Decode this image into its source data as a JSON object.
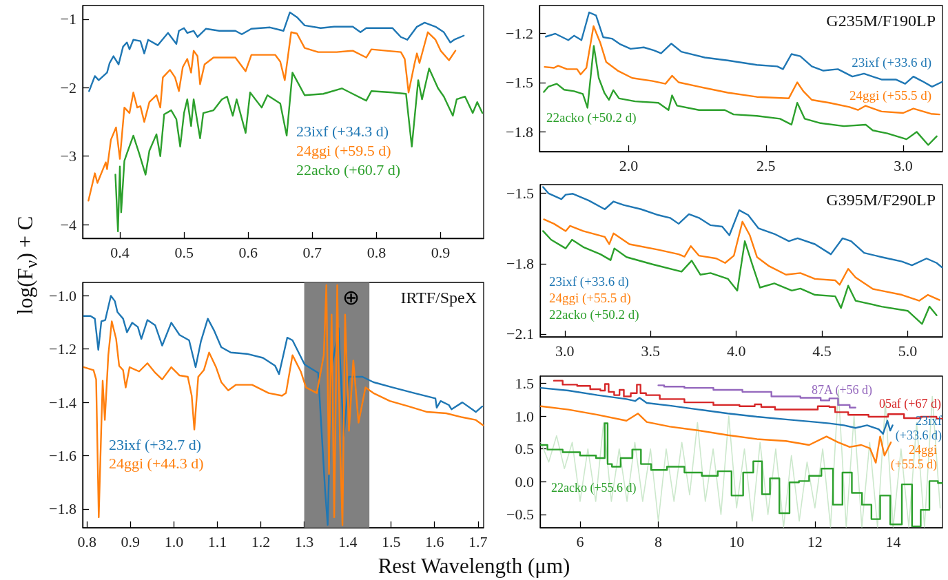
{
  "chart_data": [
    {
      "type": "line",
      "ylabel": "log(F$_{ν}$) + C",
      "xlim": [
        0.342,
        0.967
      ],
      "ylim": [
        -4.2,
        -0.8
      ],
      "xticks": [
        {
          "value": 0.4,
          "label": "0.4"
        },
        {
          "value": 0.5,
          "label": "0.5"
        },
        {
          "value": 0.6,
          "label": "0.6"
        },
        {
          "value": 0.7,
          "label": "0.7"
        },
        {
          "value": 0.8,
          "label": "0.8"
        },
        {
          "value": 0.9,
          "label": "0.9"
        }
      ],
      "yticks": [
        {
          "value": -1,
          "label": "−1"
        },
        {
          "value": -2,
          "label": "−2"
        },
        {
          "value": -3,
          "label": "−3"
        },
        {
          "value": -4,
          "label": "−4"
        }
      ],
      "series": [
        {
          "name": "23ixf (+34.3 d)",
          "color": "#1f77b4",
          "x": [
            0.352,
            0.361,
            0.367,
            0.38,
            0.384,
            0.39,
            0.398,
            0.405,
            0.411,
            0.415,
            0.421,
            0.432,
            0.438,
            0.444,
            0.459,
            0.475,
            0.488,
            0.492,
            0.5,
            0.505,
            0.515,
            0.521,
            0.534,
            0.555,
            0.58,
            0.59,
            0.605,
            0.634,
            0.655,
            0.665,
            0.676,
            0.688,
            0.713,
            0.734,
            0.763,
            0.775,
            0.784,
            0.825,
            0.838,
            0.848,
            0.863,
            0.875,
            0.892,
            0.905,
            0.915,
            0.921,
            0.936
          ],
          "values": [
            -2.05,
            -1.83,
            -1.89,
            -1.78,
            -1.64,
            -1.54,
            -1.66,
            -1.4,
            -1.34,
            -1.44,
            -1.3,
            -1.32,
            -1.5,
            -1.3,
            -1.38,
            -1.2,
            -1.36,
            -1.17,
            -1.13,
            -1.2,
            -1.17,
            -1.26,
            -1.14,
            -1.17,
            -1.17,
            -1.22,
            -1.14,
            -1.12,
            -1.17,
            -0.9,
            -0.97,
            -1.09,
            -1.13,
            -1.11,
            -1.11,
            -1.19,
            -1.13,
            -1.13,
            -1.26,
            -1.3,
            -1.11,
            -1.05,
            -1.11,
            -1.19,
            -1.34,
            -1.3,
            -1.24
          ]
        },
        {
          "name": "24ggi (+59.5 d)",
          "color": "#ff7f0e",
          "x": [
            0.351,
            0.361,
            0.365,
            0.378,
            0.38,
            0.386,
            0.394,
            0.4,
            0.407,
            0.415,
            0.421,
            0.427,
            0.432,
            0.438,
            0.446,
            0.457,
            0.463,
            0.467,
            0.478,
            0.486,
            0.492,
            0.498,
            0.505,
            0.511,
            0.515,
            0.521,
            0.525,
            0.532,
            0.546,
            0.563,
            0.58,
            0.596,
            0.605,
            0.625,
            0.642,
            0.65,
            0.657,
            0.667,
            0.676,
            0.688,
            0.709,
            0.738,
            0.763,
            0.784,
            0.792,
            0.838,
            0.844,
            0.85,
            0.859,
            0.863,
            0.867,
            0.88,
            0.892,
            0.9,
            0.913,
            0.923
          ],
          "values": [
            -3.65,
            -3.25,
            -3.39,
            -3.09,
            -3.19,
            -2.76,
            -2.58,
            -3.04,
            -2.29,
            -2.37,
            -2.07,
            -2.29,
            -2.27,
            -2.5,
            -2.21,
            -2.11,
            -2.29,
            -1.85,
            -1.74,
            -1.85,
            -2.05,
            -1.7,
            -1.58,
            -1.78,
            -1.46,
            -1.54,
            -1.95,
            -1.66,
            -1.56,
            -1.56,
            -1.56,
            -1.76,
            -1.52,
            -1.52,
            -1.52,
            -1.62,
            -1.89,
            -1.19,
            -1.21,
            -1.42,
            -1.48,
            -1.48,
            -1.46,
            -1.56,
            -1.44,
            -1.48,
            -1.58,
            -2.07,
            -1.66,
            -1.5,
            -1.64,
            -1.19,
            -1.3,
            -1.46,
            -1.6,
            -1.46
          ]
        },
        {
          "name": "22acko (+60.7 d)",
          "color": "#2ca02c",
          "x": [
            0.393,
            0.397,
            0.4,
            0.402,
            0.407,
            0.411,
            0.421,
            0.43,
            0.44,
            0.446,
            0.457,
            0.463,
            0.469,
            0.48,
            0.488,
            0.494,
            0.5,
            0.505,
            0.511,
            0.515,
            0.525,
            0.53,
            0.546,
            0.559,
            0.567,
            0.576,
            0.582,
            0.596,
            0.603,
            0.621,
            0.63,
            0.65,
            0.66,
            0.669,
            0.68,
            0.688,
            0.717,
            0.746,
            0.784,
            0.792,
            0.825,
            0.846,
            0.855,
            0.865,
            0.871,
            0.882,
            0.896,
            0.905,
            0.919,
            0.925,
            0.938,
            0.95,
            0.957,
            0.965
          ],
          "values": [
            -3.27,
            -4.1,
            -3.15,
            -3.82,
            -3.07,
            -2.96,
            -2.7,
            -2.96,
            -3.27,
            -2.92,
            -2.68,
            -3.0,
            -2.39,
            -2.33,
            -2.46,
            -2.86,
            -2.37,
            -2.17,
            -2.56,
            -2.17,
            -2.74,
            -2.37,
            -2.33,
            -2.17,
            -2.13,
            -2.41,
            -2.17,
            -2.66,
            -2.07,
            -2.29,
            -2.11,
            -2.23,
            -2.7,
            -1.78,
            -1.97,
            -2.11,
            -2.09,
            -2.01,
            -2.19,
            -2.05,
            -2.07,
            -2.09,
            -2.86,
            -1.89,
            -2.17,
            -1.72,
            -2.01,
            -2.13,
            -2.41,
            -2.17,
            -2.13,
            -2.37,
            -2.21,
            -2.37
          ]
        }
      ]
    },
    {
      "type": "line",
      "xlabel": "Rest Wavelength (μm)",
      "xlim": [
        0.79,
        1.713
      ],
      "ylim": [
        -1.87,
        -0.95
      ],
      "xticks": [
        {
          "value": 0.8,
          "label": "0.8"
        },
        {
          "value": 0.9,
          "label": "0.9"
        },
        {
          "value": 1.0,
          "label": "1.0"
        },
        {
          "value": 1.1,
          "label": "1.1"
        },
        {
          "value": 1.2,
          "label": "1.2"
        },
        {
          "value": 1.3,
          "label": "1.3"
        },
        {
          "value": 1.4,
          "label": "1.4"
        },
        {
          "value": 1.5,
          "label": "1.5"
        },
        {
          "value": 1.6,
          "label": "1.6"
        },
        {
          "value": 1.7,
          "label": "1.7"
        }
      ],
      "yticks": [
        {
          "value": -1.0,
          "label": "−1.0"
        },
        {
          "value": -1.2,
          "label": "−1.2"
        },
        {
          "value": -1.4,
          "label": "−1.4"
        },
        {
          "value": -1.6,
          "label": "−1.6"
        },
        {
          "value": -1.8,
          "label": "−1.8"
        }
      ],
      "bands": [
        {
          "axis": "x",
          "from": 1.3,
          "to": 1.45,
          "label": "⊕",
          "color": "#808080"
        }
      ],
      "annotations": [
        "IRTF/SpeX"
      ],
      "series": [
        {
          "name": "23ixf (+32.7 d)",
          "color": "#1f77b4",
          "x": [
            0.793,
            0.808,
            0.818,
            0.826,
            0.833,
            0.842,
            0.855,
            0.864,
            0.87,
            0.883,
            0.892,
            0.904,
            0.917,
            0.925,
            0.939,
            0.957,
            0.973,
            0.994,
            1.013,
            1.035,
            1.05,
            1.062,
            1.078,
            1.093,
            1.109,
            1.131,
            1.168,
            1.205,
            1.233,
            1.242,
            1.261,
            1.273,
            1.301,
            1.332,
            1.348,
            1.354,
            1.363,
            1.379,
            1.391,
            1.403,
            1.434,
            1.459,
            1.503,
            1.553,
            1.602,
            1.605,
            1.614,
            1.633,
            1.639,
            1.664,
            1.695,
            1.71
          ],
          "values": [
            -1.076,
            -1.076,
            -1.086,
            -1.203,
            -1.096,
            -1.091,
            -1.0,
            -1.02,
            -1.061,
            -1.086,
            -1.137,
            -1.101,
            -1.117,
            -1.162,
            -1.091,
            -1.111,
            -1.187,
            -1.101,
            -1.147,
            -1.167,
            -1.268,
            -1.172,
            -1.086,
            -1.132,
            -1.193,
            -1.213,
            -1.218,
            -1.233,
            -1.263,
            -1.294,
            -1.157,
            -1.167,
            -1.258,
            -1.289,
            -1.729,
            -1.86,
            -1.274,
            -1.122,
            -1.527,
            -1.304,
            -1.304,
            -1.324,
            -1.344,
            -1.365,
            -1.385,
            -1.42,
            -1.395,
            -1.41,
            -1.426,
            -1.4,
            -1.436,
            -1.415
          ]
        },
        {
          "name": "24ggi (+44.3 d)",
          "color": "#ff7f0e",
          "x": [
            0.793,
            0.815,
            0.821,
            0.827,
            0.833,
            0.836,
            0.841,
            0.849,
            0.857,
            0.867,
            0.874,
            0.883,
            0.889,
            0.898,
            0.92,
            0.939,
            0.957,
            0.973,
            0.994,
            1.013,
            1.032,
            1.041,
            1.047,
            1.056,
            1.069,
            1.081,
            1.097,
            1.109,
            1.125,
            1.143,
            1.18,
            1.218,
            1.249,
            1.258,
            1.273,
            1.292,
            1.304,
            1.329,
            1.345,
            1.351,
            1.357,
            1.363,
            1.369,
            1.376,
            1.382,
            1.388,
            1.394,
            1.403,
            1.413,
            1.425,
            1.441,
            1.459,
            1.497,
            1.54,
            1.583,
            1.627,
            1.664,
            1.695,
            1.712
          ],
          "values": [
            -1.268,
            -1.279,
            -1.314,
            -1.831,
            -1.486,
            -1.319,
            -1.466,
            -1.223,
            -1.096,
            -1.162,
            -1.263,
            -1.279,
            -1.344,
            -1.268,
            -1.284,
            -1.253,
            -1.289,
            -1.314,
            -1.268,
            -1.299,
            -1.304,
            -1.375,
            -1.502,
            -1.304,
            -1.279,
            -1.213,
            -1.268,
            -1.324,
            -1.355,
            -1.334,
            -1.334,
            -1.365,
            -1.375,
            -1.365,
            -1.223,
            -1.284,
            -1.344,
            -1.365,
            -1.223,
            -0.96,
            -1.669,
            -1.071,
            -1.831,
            -0.96,
            -1.527,
            -1.861,
            -1.071,
            -1.507,
            -1.243,
            -1.476,
            -1.344,
            -1.365,
            -1.395,
            -1.415,
            -1.436,
            -1.441,
            -1.456,
            -1.466,
            -1.486
          ]
        }
      ]
    },
    {
      "type": "line",
      "xlim": [
        1.675,
        3.143
      ],
      "ylim": [
        -1.92,
        -1.03
      ],
      "xticks": [
        {
          "value": 2.0,
          "label": "2.0"
        },
        {
          "value": 2.5,
          "label": "2.5"
        },
        {
          "value": 3.0,
          "label": "3.0"
        }
      ],
      "yticks": [
        {
          "value": -1.2,
          "label": "−1.2"
        },
        {
          "value": -1.5,
          "label": "−1.5"
        },
        {
          "value": -1.8,
          "label": "−1.8"
        }
      ],
      "annotations": [
        "G235M/F190LP"
      ],
      "series": [
        {
          "name": "23ixf (+33.6 d)",
          "color": "#1f77b4",
          "x": [
            1.698,
            1.733,
            1.78,
            1.801,
            1.828,
            1.856,
            1.881,
            1.907,
            1.939,
            1.97,
            2.007,
            2.055,
            2.092,
            2.118,
            2.155,
            2.192,
            2.277,
            2.361,
            2.467,
            2.541,
            2.562,
            2.593,
            2.625,
            2.667,
            2.709,
            2.762,
            2.815,
            2.857,
            2.921,
            2.973,
            3.007,
            3.037,
            3.068,
            3.105,
            3.142
          ],
          "values": [
            -1.22,
            -1.202,
            -1.241,
            -1.214,
            -1.241,
            -1.072,
            -1.09,
            -1.223,
            -1.232,
            -1.267,
            -1.294,
            -1.285,
            -1.303,
            -1.321,
            -1.262,
            -1.312,
            -1.347,
            -1.365,
            -1.392,
            -1.401,
            -1.418,
            -1.326,
            -1.339,
            -1.401,
            -1.427,
            -1.418,
            -1.463,
            -1.445,
            -1.481,
            -1.481,
            -1.507,
            -1.463,
            -1.49,
            -1.525,
            -1.495
          ]
        },
        {
          "name": "24ggi (+55.5 d)",
          "color": "#ff7f0e",
          "x": [
            1.694,
            1.728,
            1.743,
            1.775,
            1.812,
            1.825,
            1.846,
            1.872,
            1.897,
            1.918,
            1.96,
            2.013,
            2.087,
            2.134,
            2.158,
            2.182,
            2.256,
            2.361,
            2.467,
            2.583,
            2.614,
            2.636,
            2.667,
            2.731,
            2.804,
            2.835,
            2.863,
            2.921,
            3.0,
            3.037,
            3.101,
            3.132
          ],
          "values": [
            -1.404,
            -1.41,
            -1.397,
            -1.418,
            -1.418,
            -1.45,
            -1.41,
            -1.156,
            -1.259,
            -1.374,
            -1.427,
            -1.472,
            -1.49,
            -1.507,
            -1.458,
            -1.498,
            -1.525,
            -1.561,
            -1.587,
            -1.596,
            -1.498,
            -1.552,
            -1.605,
            -1.623,
            -1.649,
            -1.667,
            -1.641,
            -1.676,
            -1.685,
            -1.658,
            -1.69,
            -1.694
          ]
        },
        {
          "name": "22acko (+50.2 d)",
          "color": "#2ca02c",
          "x": [
            1.691,
            1.707,
            1.738,
            1.765,
            1.801,
            1.833,
            1.85,
            1.873,
            1.891,
            1.912,
            1.928,
            1.944,
            1.965,
            2.023,
            2.108,
            2.145,
            2.158,
            2.176,
            2.256,
            2.35,
            2.382,
            2.467,
            2.551,
            2.593,
            2.614,
            2.641,
            2.699,
            2.784,
            2.863,
            2.889,
            2.942,
            3.012,
            3.049,
            3.091,
            3.122
          ],
          "values": [
            -1.557,
            -1.525,
            -1.507,
            -1.543,
            -1.552,
            -1.569,
            -1.653,
            -1.276,
            -1.472,
            -1.564,
            -1.605,
            -1.546,
            -1.596,
            -1.614,
            -1.623,
            -1.667,
            -1.578,
            -1.64,
            -1.667,
            -1.667,
            -1.694,
            -1.703,
            -1.72,
            -1.756,
            -1.623,
            -1.72,
            -1.747,
            -1.765,
            -1.756,
            -1.791,
            -1.809,
            -1.845,
            -1.8,
            -1.88,
            -1.827
          ]
        }
      ]
    },
    {
      "type": "line",
      "xlim": [
        2.856,
        5.203
      ],
      "ylim": [
        -2.112,
        -1.463
      ],
      "xticks": [
        {
          "value": 3.0,
          "label": "3.0"
        },
        {
          "value": 3.5,
          "label": "3.5"
        },
        {
          "value": 4.0,
          "label": "4.0"
        },
        {
          "value": 4.5,
          "label": "4.5"
        },
        {
          "value": 5.0,
          "label": "5.0"
        }
      ],
      "yticks": [
        {
          "value": -1.5,
          "label": "−1.5"
        },
        {
          "value": -1.8,
          "label": "−1.8"
        },
        {
          "value": -2.1,
          "label": "−2.1"
        }
      ],
      "annotations": [
        "G395M/F290LP"
      ],
      "series": [
        {
          "name": "23ixf (+33.6 d)",
          "color": "#1f77b4",
          "x": [
            2.873,
            2.904,
            2.98,
            3.005,
            3.047,
            3.14,
            3.233,
            3.284,
            3.343,
            3.445,
            3.546,
            3.614,
            3.664,
            3.724,
            3.783,
            3.85,
            3.918,
            3.96,
            4.017,
            4.07,
            4.129,
            4.222,
            4.307,
            4.358,
            4.459,
            4.552,
            4.62,
            4.67,
            4.746,
            4.848,
            4.966,
            5.025,
            5.11,
            5.169,
            5.2
          ],
          "values": [
            -1.473,
            -1.5,
            -1.525,
            -1.506,
            -1.502,
            -1.531,
            -1.568,
            -1.535,
            -1.55,
            -1.568,
            -1.593,
            -1.605,
            -1.63,
            -1.589,
            -1.605,
            -1.636,
            -1.642,
            -1.679,
            -1.572,
            -1.593,
            -1.649,
            -1.673,
            -1.704,
            -1.692,
            -1.717,
            -1.76,
            -1.692,
            -1.704,
            -1.754,
            -1.772,
            -1.791,
            -1.807,
            -1.778,
            -1.797,
            -1.816
          ]
        },
        {
          "name": "24ggi (+55.5 d)",
          "color": "#ff7f0e",
          "x": [
            2.878,
            2.937,
            3.005,
            3.03,
            3.107,
            3.233,
            3.259,
            3.284,
            3.377,
            3.546,
            3.664,
            3.698,
            3.735,
            3.783,
            3.884,
            3.935,
            3.986,
            4.036,
            4.079,
            4.121,
            4.188,
            4.29,
            4.374,
            4.459,
            4.577,
            4.603,
            4.653,
            4.696,
            4.797,
            4.966,
            5.068,
            5.118,
            5.186
          ],
          "values": [
            -1.611,
            -1.63,
            -1.661,
            -1.639,
            -1.661,
            -1.686,
            -1.717,
            -1.671,
            -1.717,
            -1.741,
            -1.76,
            -1.77,
            -1.725,
            -1.766,
            -1.778,
            -1.797,
            -1.766,
            -1.621,
            -1.679,
            -1.772,
            -1.809,
            -1.847,
            -1.84,
            -1.865,
            -1.871,
            -1.89,
            -1.822,
            -1.859,
            -1.908,
            -1.933,
            -1.958,
            -1.933,
            -1.955
          ]
        },
        {
          "name": "22acko (+50.2 d)",
          "color": "#2ca02c",
          "x": [
            2.873,
            2.92,
            3.005,
            3.042,
            3.107,
            3.208,
            3.267,
            3.289,
            3.36,
            3.512,
            3.681,
            3.74,
            3.791,
            3.85,
            3.952,
            4.006,
            4.05,
            4.096,
            4.138,
            4.222,
            4.324,
            4.374,
            4.459,
            4.577,
            4.611,
            4.653,
            4.696,
            4.848,
            5.0,
            5.084,
            5.127,
            5.169
          ],
          "values": [
            -1.661,
            -1.698,
            -1.735,
            -1.698,
            -1.729,
            -1.76,
            -1.785,
            -1.735,
            -1.772,
            -1.803,
            -1.834,
            -1.787,
            -1.847,
            -1.84,
            -1.865,
            -1.915,
            -1.704,
            -1.809,
            -1.902,
            -1.884,
            -1.915,
            -1.906,
            -1.933,
            -1.939,
            -1.989,
            -1.894,
            -1.958,
            -1.983,
            -2.001,
            -2.057,
            -1.983,
            -2.02
          ]
        }
      ]
    },
    {
      "type": "line",
      "xlim": [
        4.98,
        15.26
      ],
      "ylim": [
        -0.7,
        1.61
      ],
      "xticks": [
        {
          "value": 6,
          "label": "6"
        },
        {
          "value": 8,
          "label": "8"
        },
        {
          "value": 10,
          "label": "10"
        },
        {
          "value": 12,
          "label": "12"
        },
        {
          "value": 14,
          "label": "14"
        }
      ],
      "yticks": [
        {
          "value": 1.5,
          "label": "1.5"
        },
        {
          "value": 1.0,
          "label": "1.0"
        },
        {
          "value": 0.5,
          "label": "0.5"
        },
        {
          "value": 0.0,
          "label": "0.0"
        },
        {
          "value": -0.5,
          "label": "−0.5"
        }
      ],
      "series": [
        {
          "color": "#cce8cc",
          "x": [
            5.0,
            5.2,
            5.4,
            5.6,
            5.8,
            6.0,
            6.2,
            6.4,
            6.6,
            6.8,
            7.0,
            7.2,
            7.4,
            7.6,
            7.8,
            8.0,
            8.2,
            8.4,
            8.6,
            8.8,
            9.0,
            9.2,
            9.4,
            9.6,
            9.8,
            10.0,
            10.2,
            10.4,
            10.6,
            10.8,
            11.0,
            11.2,
            11.4,
            11.6,
            11.8,
            12.0,
            12.2,
            12.4,
            12.6,
            12.8,
            13.0,
            13.2,
            13.4,
            13.6,
            13.8,
            14.0,
            14.2,
            14.4,
            14.6,
            14.8,
            15.0,
            15.2
          ],
          "values": [
            0.6,
            0.3,
            0.7,
            0.2,
            0.6,
            -0.3,
            0.5,
            -0.3,
            0.9,
            -0.3,
            0.5,
            -0.3,
            0.6,
            -0.3,
            0.5,
            -0.6,
            0.5,
            -0.3,
            0.6,
            -0.2,
            0.9,
            -0.3,
            0.5,
            -0.5,
            1.0,
            -0.4,
            0.5,
            -0.6,
            0.6,
            -0.5,
            0.5,
            -0.69,
            0.4,
            -0.6,
            0.3,
            -0.4,
            0.5,
            -0.69,
            1.4,
            -0.69,
            1.0,
            -0.69,
            0.6,
            -0.69,
            1.2,
            -0.69,
            0.5,
            -0.69,
            0.9,
            -0.69,
            1.3,
            -0.4
          ]
        },
        {
          "type": "step",
          "name": "87A (+56 d)",
          "color": "#9467bd",
          "x": [
            8.0,
            8.296,
            9.037,
            9.778,
            10.519,
            11.259,
            12.0,
            12.296,
            12.444,
            12.741,
            13.037
          ],
          "values": [
            1.47,
            1.45,
            1.43,
            1.4,
            1.37,
            1.3,
            1.28,
            1.24,
            1.27,
            1.17,
            1.13
          ]
        },
        {
          "type": "step",
          "name": "05af (+67 d)",
          "color": "#d62728",
          "x": [
            5.333,
            5.778,
            6.074,
            6.444,
            6.593,
            6.681,
            6.778,
            6.963,
            7.052,
            7.185,
            7.407,
            7.496,
            7.593,
            7.778,
            8.296,
            9.037,
            9.778,
            10.37,
            10.556,
            10.704,
            11.259,
            11.852,
            12.296,
            12.444,
            12.593,
            13.111,
            13.63,
            14.111,
            14.444,
            14.963,
            15.25
          ],
          "values": [
            1.54,
            1.48,
            1.46,
            1.41,
            1.39,
            1.49,
            1.37,
            1.32,
            1.4,
            1.3,
            1.35,
            1.48,
            1.35,
            1.32,
            1.26,
            1.21,
            1.17,
            1.15,
            1.18,
            1.14,
            1.1,
            1.1,
            1.15,
            1.14,
            1.06,
            1.02,
            0.99,
            1.03,
            0.97,
            0.99,
            0.96
          ]
        },
        {
          "name": "23ixf (+33.6 d)",
          "color": "#1f77b4",
          "x": [
            5.0,
            5.704,
            6.444,
            7.185,
            7.407,
            7.519,
            7.704,
            8.296,
            9.037,
            9.778,
            10.519,
            11.259,
            12.0,
            12.37,
            12.741,
            13.037,
            13.333,
            13.63,
            13.741,
            13.852,
            13.926,
            13.985
          ],
          "values": [
            1.43,
            1.39,
            1.32,
            1.26,
            1.23,
            1.28,
            1.2,
            1.16,
            1.1,
            1.04,
            0.99,
            0.95,
            0.91,
            0.89,
            0.86,
            0.82,
            0.86,
            0.8,
            0.73,
            0.93,
            0.78,
            0.86
          ]
        },
        {
          "name": "24ggi (+55.5 d)",
          "color": "#ff7f0e",
          "x": [
            5.0,
            5.704,
            6.444,
            7.185,
            7.481,
            7.704,
            8.296,
            9.037,
            9.778,
            10.519,
            11.259,
            11.852,
            12.296,
            12.593,
            12.889,
            13.185,
            13.407,
            13.556,
            13.667,
            13.778,
            13.941
          ],
          "values": [
            1.15,
            1.1,
            1.02,
            0.93,
            1.04,
            0.91,
            0.84,
            0.78,
            0.71,
            0.65,
            0.62,
            0.56,
            0.69,
            0.6,
            0.53,
            0.56,
            0.51,
            0.29,
            0.69,
            0.4,
            0.6
          ]
        },
        {
          "type": "step",
          "name": "22acko (+55.6 d)",
          "color": "#2ca02c",
          "x": [
            5.0,
            5.333,
            5.778,
            6.222,
            6.593,
            6.667,
            6.741,
            6.889,
            7.185,
            7.481,
            7.63,
            8.0,
            8.444,
            8.889,
            9.333,
            9.704,
            10.037,
            10.296,
            10.556,
            10.741,
            10.963,
            11.222,
            11.481,
            11.704,
            12.0,
            12.333,
            12.593,
            12.815,
            13.074,
            13.333,
            13.556,
            13.778,
            14.074,
            14.37,
            14.593,
            14.815,
            15.037,
            15.25
          ],
          "values": [
            0.56,
            0.49,
            0.45,
            0.4,
            0.36,
            0.89,
            0.27,
            0.23,
            0.36,
            0.49,
            0.27,
            0.18,
            0.23,
            0.14,
            0.09,
            0.16,
            -0.21,
            0.14,
            0.31,
            -0.19,
            0.05,
            -0.48,
            -0.01,
            0.01,
            0.09,
            0.2,
            -0.35,
            0.14,
            -0.17,
            -0.35,
            -0.57,
            -0.21,
            -0.65,
            -0.04,
            -0.68,
            -0.43,
            0.01,
            -0.02
          ]
        }
      ]
    }
  ]
}
